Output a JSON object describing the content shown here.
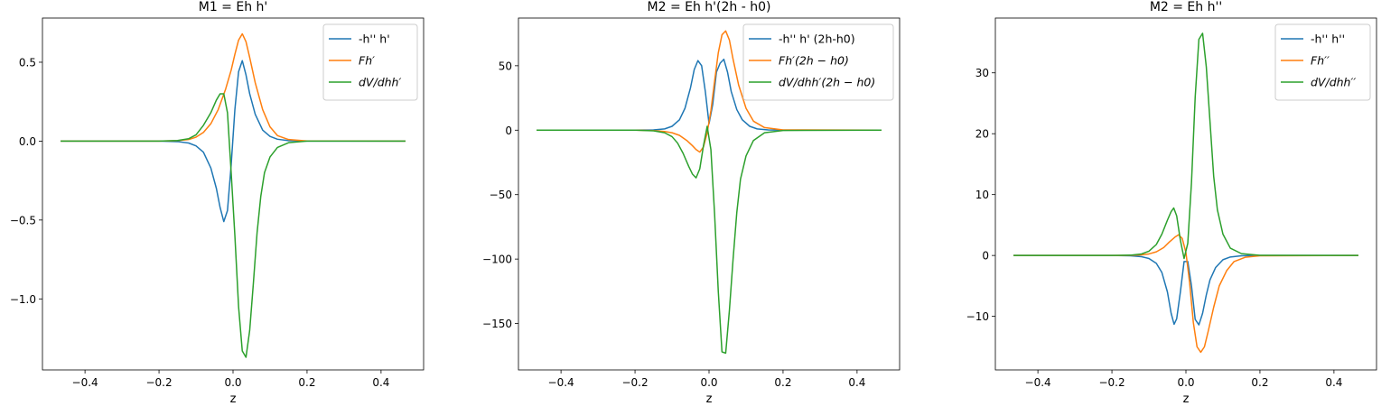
{
  "chart_data": [
    {
      "type": "line",
      "title": "M1 = Eh h'",
      "xlabel": "z",
      "ylabel": "",
      "xlim": [
        -0.515,
        0.515
      ],
      "ylim": [
        -1.45,
        0.78
      ],
      "xticks": [
        -0.4,
        -0.2,
        0.0,
        0.2,
        0.4
      ],
      "xtick_labels": [
        "−0.4",
        "−0.2",
        "0.0",
        "0.2",
        "0.4"
      ],
      "yticks": [
        -1.0,
        -0.5,
        0.0,
        0.5
      ],
      "ytick_labels": [
        "−1.0",
        "−0.5",
        "0.0",
        "0.5"
      ],
      "grid": false,
      "legend_position": "top-right",
      "series": [
        {
          "name": "-h'' h'",
          "color": "#1f77b4",
          "points": [
            [
              -0.466,
              0
            ],
            [
              -0.2,
              0
            ],
            [
              -0.15,
              -0.003
            ],
            [
              -0.12,
              -0.012
            ],
            [
              -0.1,
              -0.03
            ],
            [
              -0.08,
              -0.07
            ],
            [
              -0.06,
              -0.17
            ],
            [
              -0.045,
              -0.3
            ],
            [
              -0.035,
              -0.42
            ],
            [
              -0.025,
              -0.51
            ],
            [
              -0.015,
              -0.44
            ],
            [
              -0.005,
              -0.15
            ],
            [
              0.005,
              0.2
            ],
            [
              0.015,
              0.44
            ],
            [
              0.025,
              0.51
            ],
            [
              0.035,
              0.42
            ],
            [
              0.045,
              0.3
            ],
            [
              0.06,
              0.17
            ],
            [
              0.08,
              0.07
            ],
            [
              0.1,
              0.03
            ],
            [
              0.12,
              0.012
            ],
            [
              0.15,
              0.003
            ],
            [
              0.2,
              0
            ],
            [
              0.466,
              0
            ]
          ]
        },
        {
          "name": "Fh′",
          "color": "#ff7f0e",
          "points": [
            [
              -0.466,
              0
            ],
            [
              -0.2,
              0
            ],
            [
              -0.15,
              0.003
            ],
            [
              -0.12,
              0.01
            ],
            [
              -0.1,
              0.025
            ],
            [
              -0.08,
              0.055
            ],
            [
              -0.06,
              0.11
            ],
            [
              -0.04,
              0.2
            ],
            [
              -0.02,
              0.33
            ],
            [
              -0.005,
              0.45
            ],
            [
              0.005,
              0.55
            ],
            [
              0.015,
              0.64
            ],
            [
              0.025,
              0.68
            ],
            [
              0.035,
              0.63
            ],
            [
              0.045,
              0.53
            ],
            [
              0.06,
              0.37
            ],
            [
              0.08,
              0.2
            ],
            [
              0.1,
              0.09
            ],
            [
              0.12,
              0.035
            ],
            [
              0.15,
              0.01
            ],
            [
              0.2,
              0.001
            ],
            [
              0.466,
              0
            ]
          ]
        },
        {
          "name": "dV/dhh′",
          "color": "#2ca02c",
          "points": [
            [
              -0.466,
              0
            ],
            [
              -0.2,
              0
            ],
            [
              -0.15,
              0.004
            ],
            [
              -0.12,
              0.015
            ],
            [
              -0.1,
              0.04
            ],
            [
              -0.08,
              0.1
            ],
            [
              -0.06,
              0.18
            ],
            [
              -0.045,
              0.26
            ],
            [
              -0.035,
              0.3
            ],
            [
              -0.025,
              0.3
            ],
            [
              -0.015,
              0.18
            ],
            [
              -0.005,
              -0.2
            ],
            [
              0.005,
              -0.6
            ],
            [
              0.015,
              -1.05
            ],
            [
              0.025,
              -1.33
            ],
            [
              0.035,
              -1.37
            ],
            [
              0.045,
              -1.2
            ],
            [
              0.055,
              -0.9
            ],
            [
              0.065,
              -0.58
            ],
            [
              0.075,
              -0.35
            ],
            [
              0.085,
              -0.2
            ],
            [
              0.1,
              -0.1
            ],
            [
              0.12,
              -0.04
            ],
            [
              0.15,
              -0.01
            ],
            [
              0.2,
              0
            ],
            [
              0.466,
              0
            ]
          ]
        }
      ]
    },
    {
      "type": "line",
      "title": "M2 = Eh h'(2h - h0)",
      "xlabel": "z",
      "ylabel": "",
      "xlim": [
        -0.515,
        0.515
      ],
      "ylim": [
        -186,
        87
      ],
      "xticks": [
        -0.4,
        -0.2,
        0.0,
        0.2,
        0.4
      ],
      "xtick_labels": [
        "−0.4",
        "−0.2",
        "0.0",
        "0.2",
        "0.4"
      ],
      "yticks": [
        -150,
        -100,
        -50,
        0,
        50
      ],
      "ytick_labels": [
        "−150",
        "−100",
        "−50",
        "0",
        "50"
      ],
      "grid": false,
      "legend_position": "top-right",
      "series": [
        {
          "name": "-h'' h' (2h-h0)",
          "color": "#1f77b4",
          "points": [
            [
              -0.466,
              0
            ],
            [
              -0.2,
              0
            ],
            [
              -0.15,
              0.2
            ],
            [
              -0.12,
              1
            ],
            [
              -0.1,
              3
            ],
            [
              -0.08,
              8
            ],
            [
              -0.065,
              17
            ],
            [
              -0.05,
              33
            ],
            [
              -0.04,
              47
            ],
            [
              -0.03,
              54
            ],
            [
              -0.02,
              50
            ],
            [
              -0.01,
              30
            ],
            [
              0.0,
              5
            ],
            [
              0.01,
              20
            ],
            [
              0.02,
              45
            ],
            [
              0.03,
              52
            ],
            [
              0.04,
              55
            ],
            [
              0.05,
              45
            ],
            [
              0.06,
              30
            ],
            [
              0.075,
              16
            ],
            [
              0.09,
              8
            ],
            [
              0.11,
              3
            ],
            [
              0.13,
              1
            ],
            [
              0.16,
              0.2
            ],
            [
              0.2,
              0
            ],
            [
              0.466,
              0
            ]
          ]
        },
        {
          "name": "Fh′(2h − h0)",
          "color": "#ff7f0e",
          "points": [
            [
              -0.466,
              0
            ],
            [
              -0.2,
              0
            ],
            [
              -0.15,
              -0.3
            ],
            [
              -0.12,
              -1
            ],
            [
              -0.1,
              -2
            ],
            [
              -0.08,
              -4
            ],
            [
              -0.06,
              -8
            ],
            [
              -0.045,
              -12
            ],
            [
              -0.035,
              -15
            ],
            [
              -0.025,
              -17
            ],
            [
              -0.015,
              -13
            ],
            [
              -0.005,
              -2
            ],
            [
              0.005,
              15
            ],
            [
              0.015,
              38
            ],
            [
              0.025,
              60
            ],
            [
              0.035,
              74
            ],
            [
              0.045,
              77
            ],
            [
              0.055,
              70
            ],
            [
              0.065,
              55
            ],
            [
              0.08,
              35
            ],
            [
              0.1,
              17
            ],
            [
              0.12,
              7
            ],
            [
              0.15,
              2
            ],
            [
              0.2,
              0.2
            ],
            [
              0.466,
              0
            ]
          ]
        },
        {
          "name": "dV/dhh′(2h − h0)",
          "color": "#2ca02c",
          "points": [
            [
              -0.466,
              0
            ],
            [
              -0.2,
              0
            ],
            [
              -0.15,
              -0.5
            ],
            [
              -0.12,
              -2
            ],
            [
              -0.1,
              -5
            ],
            [
              -0.085,
              -10
            ],
            [
              -0.07,
              -18
            ],
            [
              -0.055,
              -28
            ],
            [
              -0.045,
              -34
            ],
            [
              -0.035,
              -37
            ],
            [
              -0.025,
              -30
            ],
            [
              -0.015,
              -12
            ],
            [
              -0.005,
              3
            ],
            [
              0.005,
              -15
            ],
            [
              0.015,
              -65
            ],
            [
              0.025,
              -125
            ],
            [
              0.035,
              -172
            ],
            [
              0.045,
              -173
            ],
            [
              0.055,
              -140
            ],
            [
              0.065,
              -100
            ],
            [
              0.075,
              -64
            ],
            [
              0.085,
              -38
            ],
            [
              0.1,
              -20
            ],
            [
              0.12,
              -8
            ],
            [
              0.15,
              -2
            ],
            [
              0.2,
              -0.2
            ],
            [
              0.466,
              0
            ]
          ]
        }
      ]
    },
    {
      "type": "line",
      "title": "M2 = Eh h''",
      "xlabel": "z",
      "ylabel": "",
      "xlim": [
        -0.515,
        0.515
      ],
      "ylim": [
        -18.8,
        39
      ],
      "xticks": [
        -0.4,
        -0.2,
        0.0,
        0.2,
        0.4
      ],
      "xtick_labels": [
        "−0.4",
        "−0.2",
        "0.0",
        "0.2",
        "0.4"
      ],
      "yticks": [
        -10,
        0,
        10,
        20,
        30
      ],
      "ytick_labels": [
        "−10",
        "0",
        "10",
        "20",
        "30"
      ],
      "grid": false,
      "legend_position": "top-right",
      "series": [
        {
          "name": "-h'' h''",
          "color": "#1f77b4",
          "points": [
            [
              -0.466,
              0
            ],
            [
              -0.2,
              0
            ],
            [
              -0.15,
              -0.05
            ],
            [
              -0.12,
              -0.2
            ],
            [
              -0.1,
              -0.5
            ],
            [
              -0.08,
              -1.3
            ],
            [
              -0.065,
              -2.8
            ],
            [
              -0.05,
              -6
            ],
            [
              -0.04,
              -9.5
            ],
            [
              -0.032,
              -11.3
            ],
            [
              -0.025,
              -10.4
            ],
            [
              -0.015,
              -6
            ],
            [
              -0.005,
              -1
            ],
            [
              0.005,
              -1
            ],
            [
              0.015,
              -5
            ],
            [
              0.025,
              -10.5
            ],
            [
              0.035,
              -11.4
            ],
            [
              0.045,
              -9.5
            ],
            [
              0.055,
              -6.5
            ],
            [
              0.065,
              -4
            ],
            [
              0.08,
              -2
            ],
            [
              0.1,
              -0.7
            ],
            [
              0.12,
              -0.25
            ],
            [
              0.15,
              -0.05
            ],
            [
              0.2,
              0
            ],
            [
              0.466,
              0
            ]
          ]
        },
        {
          "name": "Fh′′",
          "color": "#ff7f0e",
          "points": [
            [
              -0.466,
              0
            ],
            [
              -0.2,
              0
            ],
            [
              -0.15,
              0.02
            ],
            [
              -0.12,
              0.1
            ],
            [
              -0.1,
              0.25
            ],
            [
              -0.08,
              0.6
            ],
            [
              -0.06,
              1.3
            ],
            [
              -0.045,
              2.2
            ],
            [
              -0.03,
              3
            ],
            [
              -0.02,
              3.4
            ],
            [
              -0.01,
              2.8
            ],
            [
              0.0,
              0.5
            ],
            [
              0.01,
              -4.5
            ],
            [
              0.02,
              -11
            ],
            [
              0.03,
              -15
            ],
            [
              0.04,
              -15.9
            ],
            [
              0.05,
              -15
            ],
            [
              0.06,
              -12.5
            ],
            [
              0.075,
              -8.5
            ],
            [
              0.09,
              -5
            ],
            [
              0.11,
              -2.5
            ],
            [
              0.13,
              -1
            ],
            [
              0.16,
              -0.3
            ],
            [
              0.2,
              -0.05
            ],
            [
              0.466,
              0
            ]
          ]
        },
        {
          "name": "dV/dhh′′",
          "color": "#2ca02c",
          "points": [
            [
              -0.466,
              0
            ],
            [
              -0.2,
              0
            ],
            [
              -0.15,
              0.05
            ],
            [
              -0.12,
              0.25
            ],
            [
              -0.1,
              0.7
            ],
            [
              -0.08,
              1.8
            ],
            [
              -0.065,
              3.5
            ],
            [
              -0.05,
              5.8
            ],
            [
              -0.04,
              7.2
            ],
            [
              -0.033,
              7.8
            ],
            [
              -0.025,
              6.5
            ],
            [
              -0.015,
              2.5
            ],
            [
              -0.005,
              -0.5
            ],
            [
              0.005,
              2
            ],
            [
              0.015,
              12
            ],
            [
              0.025,
              26
            ],
            [
              0.035,
              35.5
            ],
            [
              0.045,
              36.5
            ],
            [
              0.055,
              31
            ],
            [
              0.065,
              22
            ],
            [
              0.075,
              13
            ],
            [
              0.085,
              7.5
            ],
            [
              0.1,
              3.5
            ],
            [
              0.12,
              1.2
            ],
            [
              0.15,
              0.3
            ],
            [
              0.2,
              0.02
            ],
            [
              0.466,
              0
            ]
          ]
        }
      ]
    }
  ]
}
